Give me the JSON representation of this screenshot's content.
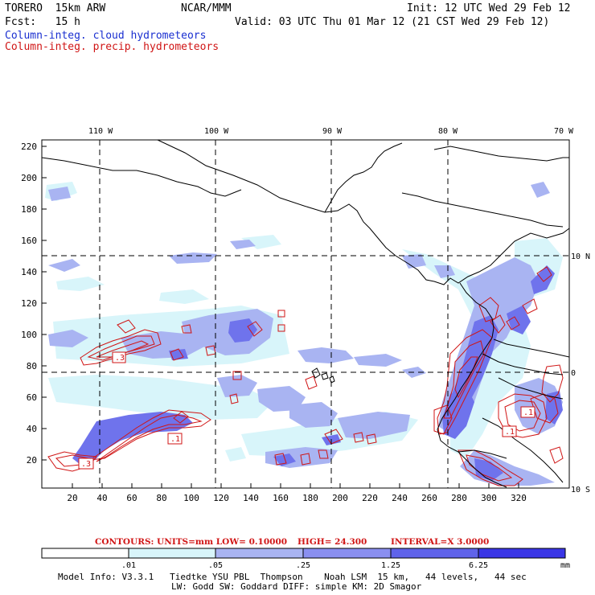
{
  "header": {
    "model": "TORERO  15km ARW",
    "org": "NCAR/MMM",
    "init": "Init: 12 UTC Wed 29 Feb 12",
    "fcst": "Fcst:   15 h",
    "valid": "Valid: 03 UTC Thu 01 Mar 12 (21 CST Wed 29 Feb 12)",
    "field1": "Column-integ. cloud hydrometeors",
    "field2": "Column-integ. precip. hydrometeors",
    "field1_color": "#1a2fd0",
    "field2_color": "#d01515"
  },
  "map": {
    "lon_labels": [
      "110 W",
      "100 W",
      "90 W",
      "80 W",
      "70 W"
    ],
    "lat_labels": [
      "10 N",
      "0",
      "10 S"
    ],
    "y_ticks": [
      "220",
      "200",
      "180",
      "160",
      "140",
      "120",
      "100",
      "80",
      "60",
      "40",
      "20"
    ],
    "x_ticks": [
      "20",
      "40",
      "60",
      "80",
      "100",
      "120",
      "140",
      "160",
      "180",
      "200",
      "220",
      "240",
      "260",
      "280",
      "300",
      "320"
    ],
    "contour_labels": [
      ".3",
      ".1",
      ".3",
      ".1",
      ".1"
    ]
  },
  "contours_line": {
    "prefix": "CONTOURS:  UNITS=mm  LOW= 0.10000",
    "high": "HIGH=  24.300",
    "interval": "INTERVAL=X  3.0000"
  },
  "colorbar": {
    "labels": [
      ".01",
      ".05",
      ".25",
      "1.25",
      "6.25"
    ],
    "unit": "mm",
    "colors": [
      "#ffffff",
      "#d8f5fa",
      "#a9b4f2",
      "#8a8ff0",
      "#5f63ea",
      "#3a36e6"
    ]
  },
  "model_info": {
    "line1": "Model Info: V3.3.1   Tiedtke YSU PBL  Thompson    Noah LSM  15 km,   44 levels,   44 sec",
    "line2": "LW: Godd SW: Goddard DIFF: simple KM: 2D Smagor"
  }
}
